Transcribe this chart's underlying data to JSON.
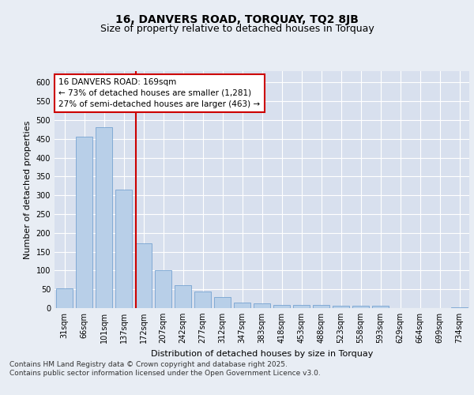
{
  "title": "16, DANVERS ROAD, TORQUAY, TQ2 8JB",
  "subtitle": "Size of property relative to detached houses in Torquay",
  "xlabel": "Distribution of detached houses by size in Torquay",
  "ylabel": "Number of detached properties",
  "categories": [
    "31sqm",
    "66sqm",
    "101sqm",
    "137sqm",
    "172sqm",
    "207sqm",
    "242sqm",
    "277sqm",
    "312sqm",
    "347sqm",
    "383sqm",
    "418sqm",
    "453sqm",
    "488sqm",
    "523sqm",
    "558sqm",
    "593sqm",
    "629sqm",
    "664sqm",
    "699sqm",
    "734sqm"
  ],
  "values": [
    53,
    455,
    480,
    315,
    173,
    100,
    60,
    44,
    30,
    14,
    13,
    8,
    8,
    9,
    7,
    7,
    7,
    1,
    1,
    1,
    3
  ],
  "bar_color": "#b8cfe8",
  "bar_edge_color": "#6699cc",
  "bar_width": 0.85,
  "redline_color": "#cc0000",
  "redline_label": "16 DANVERS ROAD: 169sqm",
  "annotation_line1": "16 DANVERS ROAD: 169sqm",
  "annotation_line2": "← 73% of detached houses are smaller (1,281)",
  "annotation_line3": "27% of semi-detached houses are larger (463) →",
  "annotation_box_color": "#ffffff",
  "annotation_box_edge": "#cc0000",
  "ylim": [
    0,
    630
  ],
  "yticks": [
    0,
    50,
    100,
    150,
    200,
    250,
    300,
    350,
    400,
    450,
    500,
    550,
    600
  ],
  "background_color": "#e8edf4",
  "plot_background": "#d8e0ee",
  "footer": "Contains HM Land Registry data © Crown copyright and database right 2025.\nContains public sector information licensed under the Open Government Licence v3.0.",
  "title_fontsize": 10,
  "subtitle_fontsize": 9,
  "axis_label_fontsize": 8,
  "tick_fontsize": 7,
  "annotation_fontsize": 7.5,
  "footer_fontsize": 6.5
}
